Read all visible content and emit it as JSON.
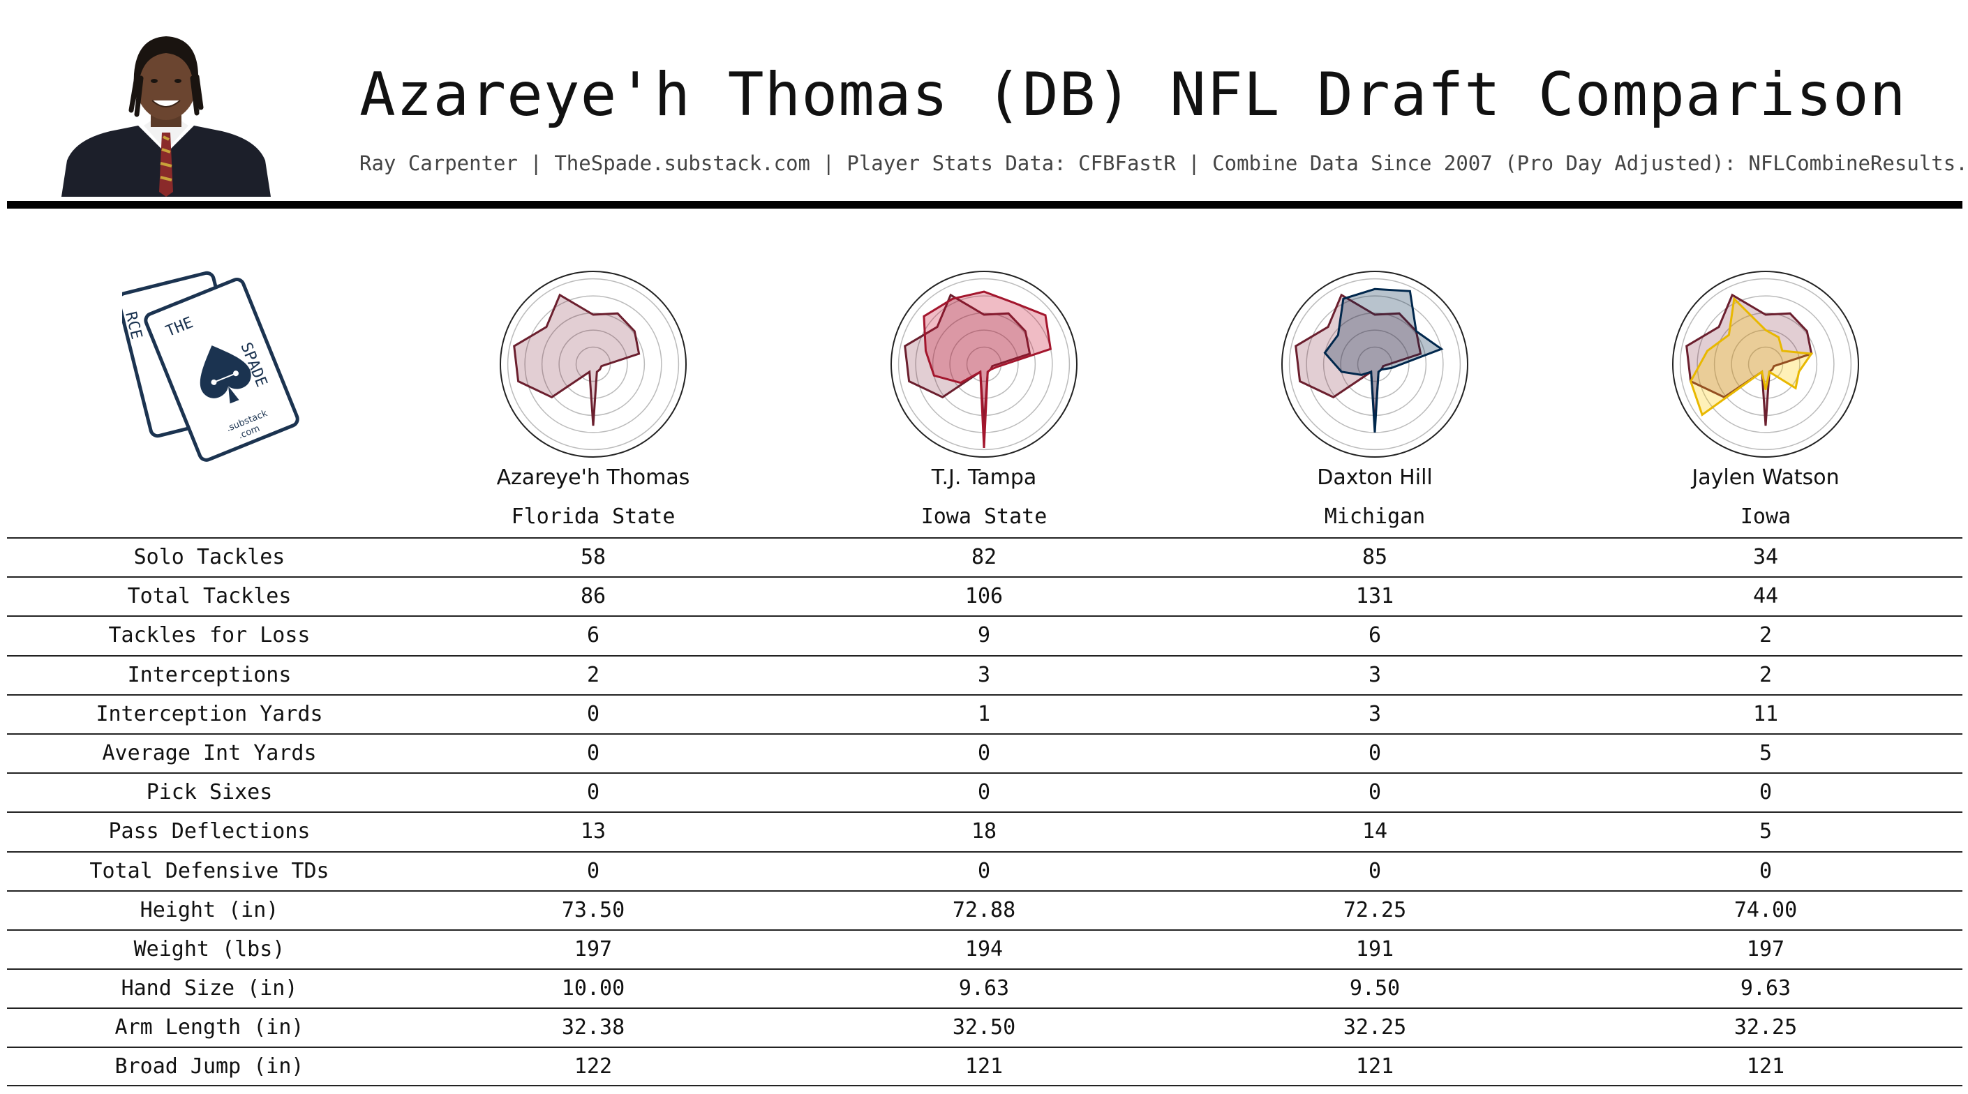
{
  "header": {
    "title": "Azareye'h Thomas (DB) NFL Draft Comparison",
    "subtitle": "Ray Carpenter | TheSpade.substack.com | Player Stats Data: CFBFastR | Combine Data Since 2007 (Pro Day Adjusted): NFLCombineResults.com"
  },
  "logo": {
    "letters_left": "RCE",
    "letters_mid": "THE",
    "letters_right": "SPADE",
    "small_text_1": ".substack",
    "small_text_2": ".com"
  },
  "players": [
    {
      "name": "Azareye'h Thomas",
      "school": "Florida State",
      "fill": "#7a1f35",
      "stroke": "#6b1f2e"
    },
    {
      "name": "T.J. Tampa",
      "school": "Iowa State",
      "fill": "#c8102e",
      "stroke": "#a3162d"
    },
    {
      "name": "Daxton Hill",
      "school": "Michigan",
      "fill": "#00274c",
      "stroke": "#00274c"
    },
    {
      "name": "Jaylen Watson",
      "school": "Iowa",
      "fill": "#ffcd00",
      "stroke": "#e8b800"
    }
  ],
  "colors": {
    "reference_fill": "#7a1f35",
    "reference_stroke": "#6b1f2e",
    "grid": "#bbbbbb",
    "rule": "#000000"
  },
  "chart_data": {
    "type": "table",
    "rows": [
      {
        "label": "Solo Tackles",
        "values": [
          "58",
          "82",
          "85",
          "34"
        ]
      },
      {
        "label": "Total Tackles",
        "values": [
          "86",
          "106",
          "131",
          "44"
        ]
      },
      {
        "label": "Tackles for Loss",
        "values": [
          "6",
          "9",
          "6",
          "2"
        ]
      },
      {
        "label": "Interceptions",
        "values": [
          "2",
          "3",
          "3",
          "2"
        ]
      },
      {
        "label": "Interception Yards",
        "values": [
          "0",
          "1",
          "3",
          "11"
        ]
      },
      {
        "label": "Average Int Yards",
        "values": [
          "0",
          "0",
          "0",
          "5"
        ]
      },
      {
        "label": "Pick Sixes",
        "values": [
          "0",
          "0",
          "0",
          "0"
        ]
      },
      {
        "label": "Pass Deflections",
        "values": [
          "13",
          "18",
          "14",
          "5"
        ]
      },
      {
        "label": "Total Defensive TDs",
        "values": [
          "0",
          "0",
          "0",
          "0"
        ]
      },
      {
        "label": "Height (in)",
        "values": [
          "73.50",
          "72.88",
          "72.25",
          "74.00"
        ]
      },
      {
        "label": "Weight (lbs)",
        "values": [
          "197",
          "194",
          "191",
          "197"
        ]
      },
      {
        "label": "Hand Size (in)",
        "values": [
          "10.00",
          "9.63",
          "9.50",
          "9.63"
        ]
      },
      {
        "label": "Arm Length (in)",
        "values": [
          "32.38",
          "32.50",
          "32.25",
          "32.25"
        ]
      },
      {
        "label": "Broad Jump (in)",
        "values": [
          "122",
          "121",
          "121",
          "121"
        ]
      }
    ],
    "radar": {
      "type": "radar",
      "axes": [
        "Solo Tackles",
        "Total Tackles",
        "Tackles for Loss",
        "Interceptions",
        "Interception Yards",
        "Average Int Yards",
        "Pick Sixes",
        "Pass Deflections",
        "Total Defensive TDs",
        "Height (in)",
        "Weight (lbs)",
        "Hand Size (in)",
        "Arm Length (in)",
        "Broad Jump (in)"
      ],
      "rings": 5,
      "series": [
        {
          "name": "Azareye'h Thomas",
          "values": [
            0.58,
            0.66,
            0.62,
            0.55,
            0.1,
            0.1,
            0.1,
            0.72,
            0.1,
            0.62,
            0.9,
            0.95,
            0.7,
            0.9
          ]
        },
        {
          "name": "T.J. Tampa",
          "values": [
            0.85,
            0.8,
            0.92,
            0.8,
            0.15,
            0.1,
            0.1,
            0.98,
            0.1,
            0.35,
            0.6,
            0.7,
            0.9,
            0.85
          ]
        },
        {
          "name": "Daxton Hill",
          "values": [
            0.88,
            0.95,
            0.62,
            0.8,
            0.2,
            0.1,
            0.1,
            0.8,
            0.1,
            0.2,
            0.4,
            0.6,
            0.55,
            0.85
          ]
        },
        {
          "name": "Jaylen Watson",
          "values": [
            0.4,
            0.35,
            0.25,
            0.55,
            0.4,
            0.45,
            0.1,
            0.3,
            0.1,
            0.95,
            0.9,
            0.7,
            0.55,
            0.85
          ]
        }
      ]
    }
  }
}
